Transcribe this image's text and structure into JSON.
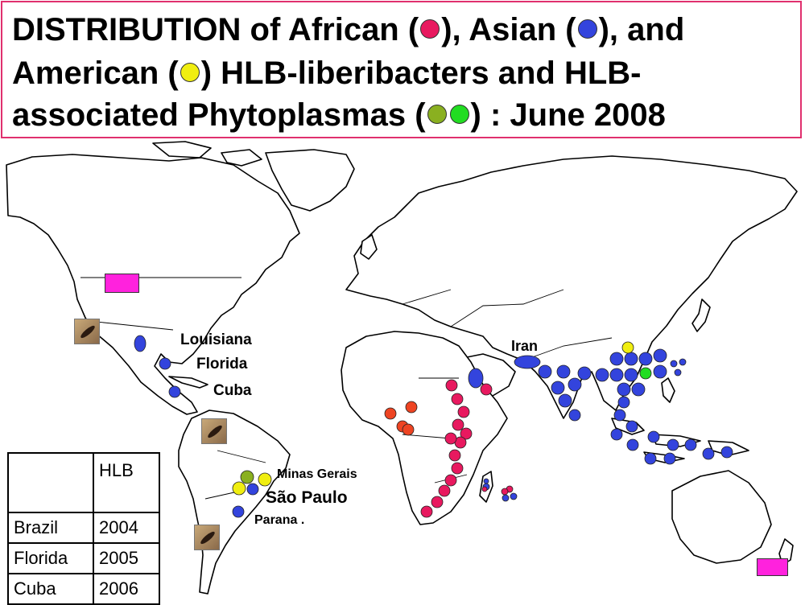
{
  "title": {
    "line1_a": "DISTRIBUTION of African (",
    "line1_b": "), Asian (",
    "line1_c": "), and",
    "line2_a": "American (",
    "line2_b": ") HLB-liberibacters and HLB-",
    "line3_a": "associated Phytoplasmas (",
    "line3_b": ") : June 2008"
  },
  "colors": {
    "african": "#e8195f",
    "asian": "#3344dd",
    "american": "#f0ee10",
    "phytoplasma_a": "#8ab020",
    "phytoplasma_b": "#22dd22",
    "border": "#e0306e",
    "rect": "#ff22dd"
  },
  "labels": {
    "louisiana": "Louisiana",
    "florida": "Florida",
    "cuba": "Cuba",
    "minas_gerais": "Minas Gerais",
    "sao_paulo": "São Paulo",
    "parana": "Parana .",
    "iran": "Iran"
  },
  "table": {
    "header": [
      "",
      "HLB"
    ],
    "rows": [
      [
        "Brazil",
        "2004"
      ],
      [
        "Florida",
        "2005"
      ],
      [
        "Cuba",
        "2006"
      ]
    ]
  },
  "icons": [
    "psyllid-photo-icon"
  ]
}
